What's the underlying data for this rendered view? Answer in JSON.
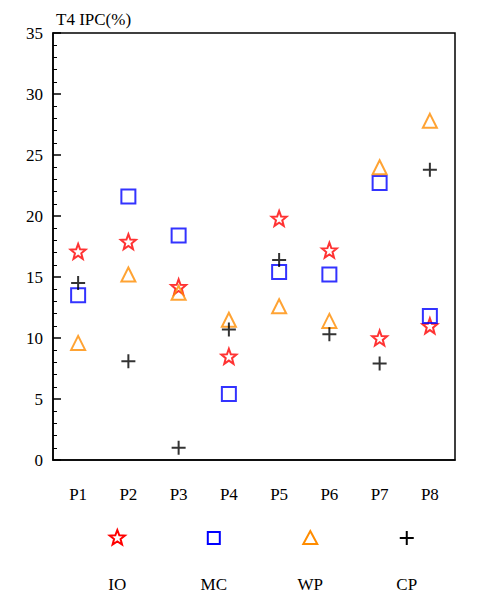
{
  "chart_data": {
    "type": "scatter",
    "title": "T4 IPC(%)",
    "categories": [
      "P1",
      "P2",
      "P3",
      "P4",
      "P5",
      "P6",
      "P7",
      "P8"
    ],
    "series": [
      {
        "name": "IO",
        "color": "#ff0000",
        "marker": "star",
        "values": [
          17.1,
          17.9,
          14.2,
          8.5,
          19.8,
          17.2,
          10.0,
          11.0
        ]
      },
      {
        "name": "MC",
        "color": "#0000ff",
        "marker": "square",
        "values": [
          13.5,
          21.6,
          18.4,
          5.4,
          15.4,
          15.2,
          22.7,
          11.8
        ]
      },
      {
        "name": "WP",
        "color": "#ff8c00",
        "marker": "triangle",
        "values": [
          9.6,
          15.2,
          13.7,
          11.5,
          12.6,
          11.4,
          24.0,
          27.8
        ]
      },
      {
        "name": "CP",
        "color": "#000000",
        "marker": "plus",
        "values": [
          14.5,
          8.1,
          1.0,
          10.7,
          16.4,
          10.3,
          7.9,
          23.8
        ]
      }
    ],
    "ylim": [
      0,
      35
    ],
    "yticks": [
      0,
      5,
      10,
      15,
      20,
      25,
      30,
      35
    ],
    "grid": false,
    "legend": "bottom"
  }
}
